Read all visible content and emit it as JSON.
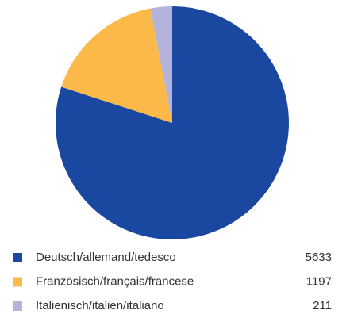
{
  "chart_data": {
    "type": "pie",
    "categories": [
      "Deutsch/allemand/tedesco",
      "Französisch/français/francese",
      "Italienisch/italien/italiano"
    ],
    "values": [
      5633,
      1197,
      211
    ],
    "colors": [
      "#1a47a0",
      "#fbb94a",
      "#b3b3dc"
    ]
  }
}
